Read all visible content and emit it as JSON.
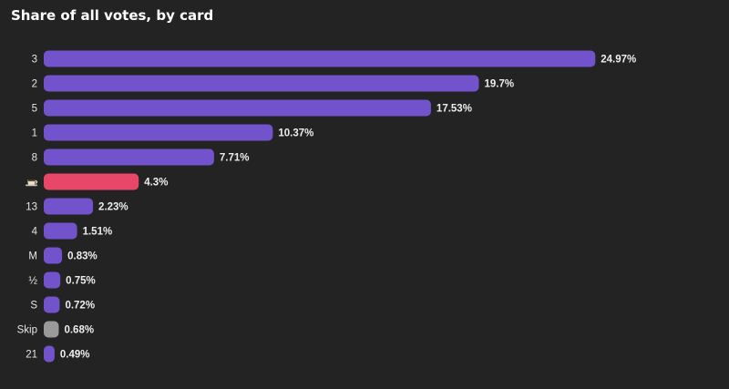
{
  "chart_data": {
    "type": "bar",
    "orientation": "horizontal",
    "title": "Share of all votes, by card",
    "xlabel": "",
    "ylabel": "",
    "xlim": [
      0,
      25
    ],
    "grid": false,
    "legend": "none",
    "value_suffix": "%",
    "categories": [
      "3",
      "2",
      "5",
      "1",
      "8",
      "coffee-icon",
      "13",
      "4",
      "M",
      "½",
      "S",
      "Skip",
      "21"
    ],
    "values": [
      24.97,
      19.7,
      17.53,
      10.37,
      7.71,
      4.3,
      2.23,
      1.51,
      0.83,
      0.75,
      0.72,
      0.68,
      0.49
    ],
    "value_labels": [
      "24.97%",
      "19.7%",
      "17.53%",
      "10.37%",
      "7.71%",
      "4.3%",
      "2.23%",
      "1.51%",
      "0.83%",
      "0.75%",
      "0.72%",
      "0.68%",
      "0.49%"
    ],
    "bar_colors": [
      "#7253cc",
      "#7253cc",
      "#7253cc",
      "#7253cc",
      "#7253cc",
      "#e8476a",
      "#7253cc",
      "#7253cc",
      "#7253cc",
      "#7253cc",
      "#7253cc",
      "#9a9a9a",
      "#7253cc"
    ]
  },
  "colors": {
    "background": "#232323",
    "primary_bar": "#7253cc",
    "highlight_bar": "#e8476a",
    "skip_bar": "#9a9a9a",
    "text": "#ededed"
  }
}
